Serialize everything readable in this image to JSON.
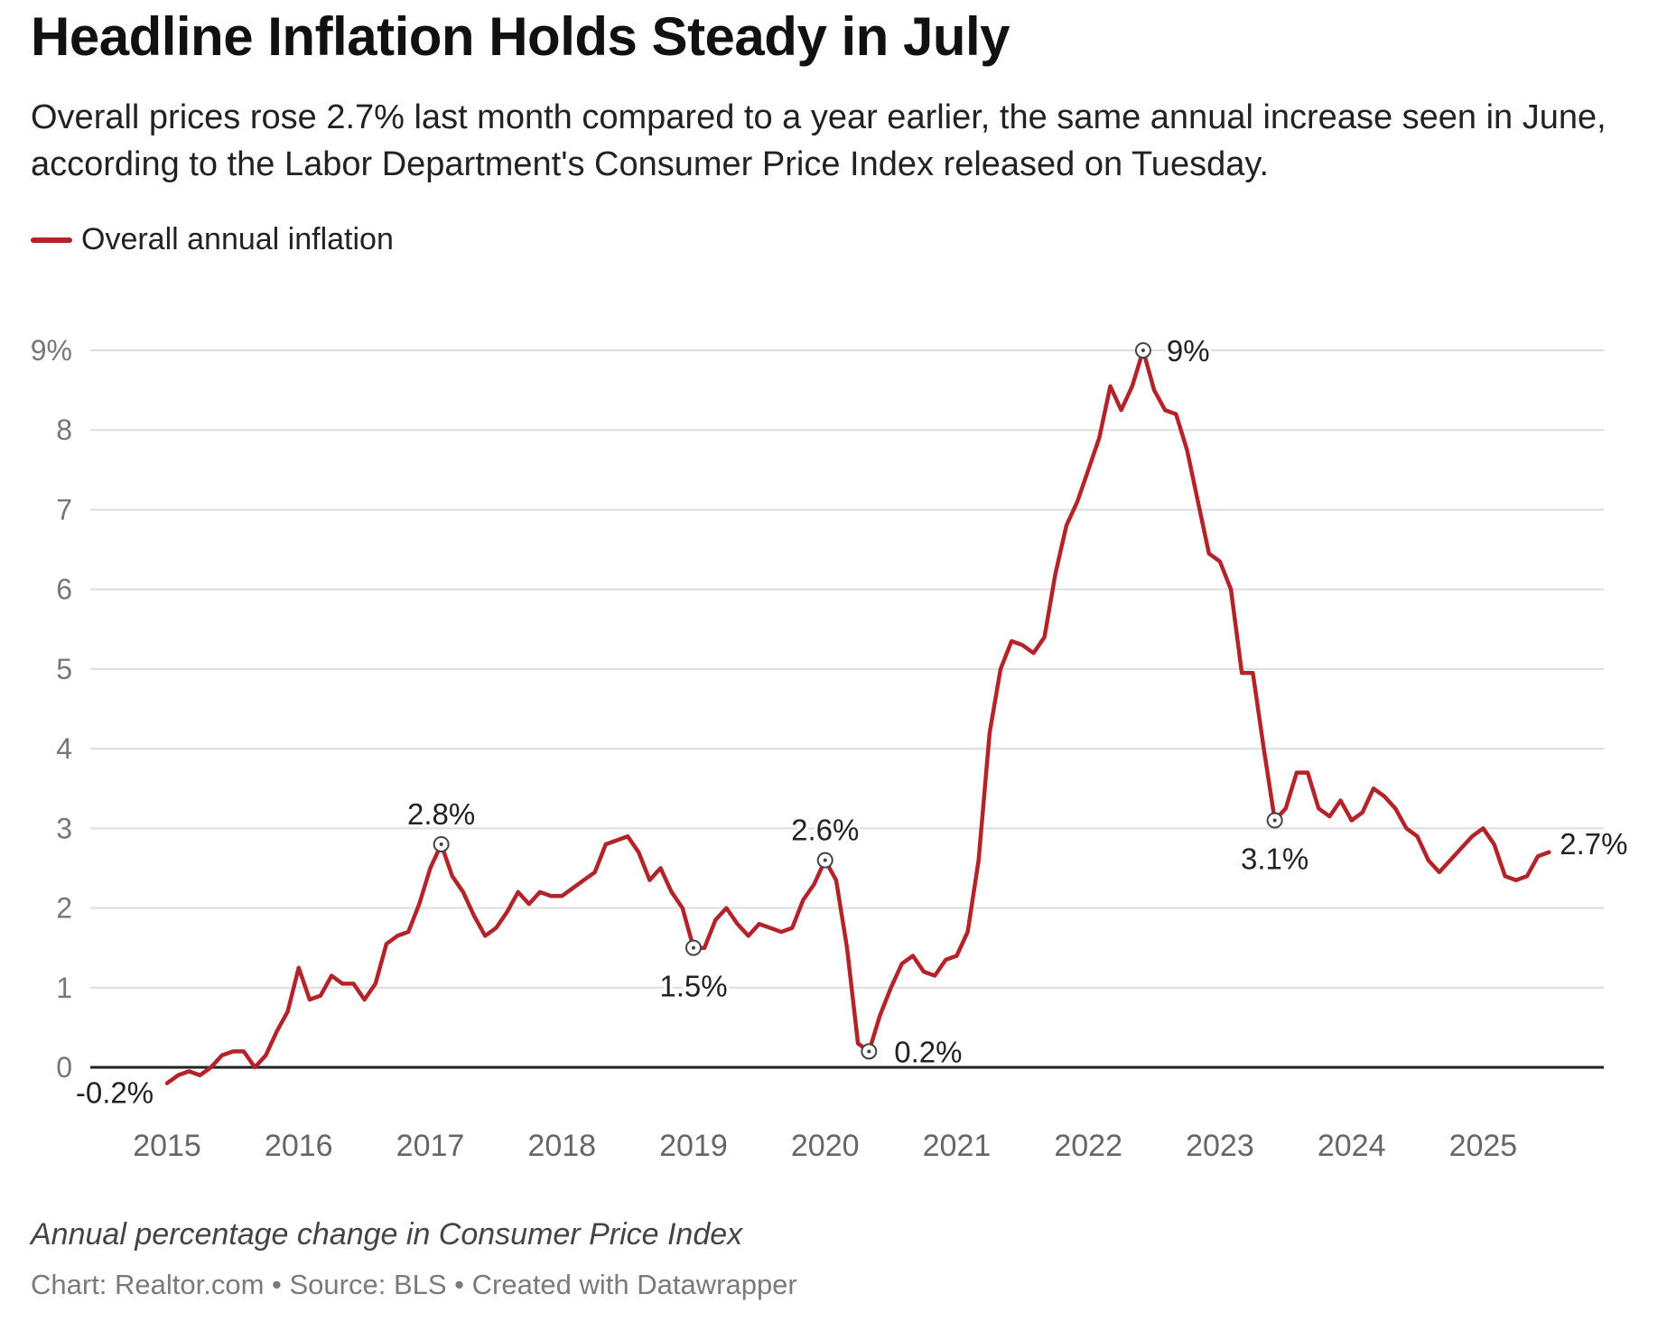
{
  "title": "Headline Inflation Holds Steady in July",
  "subtitle": "Overall prices rose 2.7% last month compared to a year earlier, the same annual increase seen in June, according to the Labor Department's Consumer Price Index released on Tuesday.",
  "notes": "Annual percentage change in Consumer Price Index",
  "footer": "Chart: Realtor.com • Source: BLS • Created with Datawrapper",
  "colors": {
    "line": "#b3232a",
    "grid": "#dddddd",
    "axis": "#222222",
    "tick": "#777777",
    "label": "#222222"
  },
  "chart_data": {
    "type": "line",
    "title": "Headline Inflation Holds Steady in July",
    "ylabel": "",
    "xlabel": "",
    "ylim": [
      -0.2,
      9
    ],
    "xlim": [
      "2014-06-01",
      "2025-12-31"
    ],
    "y_ticks": [
      {
        "value": 9,
        "label": "9%"
      },
      {
        "value": 8,
        "label": "8"
      },
      {
        "value": 7,
        "label": "7"
      },
      {
        "value": 6,
        "label": "6"
      },
      {
        "value": 5,
        "label": "5"
      },
      {
        "value": 4,
        "label": "4"
      },
      {
        "value": 3,
        "label": "3"
      },
      {
        "value": 2,
        "label": "2"
      },
      {
        "value": 1,
        "label": "1"
      },
      {
        "value": 0,
        "label": "0"
      }
    ],
    "x_ticks": [
      {
        "value": "2015-01",
        "label": "2015"
      },
      {
        "value": "2016-01",
        "label": "2016"
      },
      {
        "value": "2017-01",
        "label": "2017"
      },
      {
        "value": "2018-01",
        "label": "2018"
      },
      {
        "value": "2019-01",
        "label": "2019"
      },
      {
        "value": "2020-01",
        "label": "2020"
      },
      {
        "value": "2021-01",
        "label": "2021"
      },
      {
        "value": "2022-01",
        "label": "2022"
      },
      {
        "value": "2023-01",
        "label": "2023"
      },
      {
        "value": "2024-01",
        "label": "2024"
      },
      {
        "value": "2025-01",
        "label": "2025"
      }
    ],
    "grid": true,
    "legend": "top-left",
    "series": [
      {
        "name": "Overall annual inflation",
        "color": "#b3232a",
        "x": [
          "2015-01",
          "2015-02",
          "2015-03",
          "2015-04",
          "2015-05",
          "2015-06",
          "2015-07",
          "2015-08",
          "2015-09",
          "2015-10",
          "2015-11",
          "2015-12",
          "2016-01",
          "2016-02",
          "2016-03",
          "2016-04",
          "2016-05",
          "2016-06",
          "2016-07",
          "2016-08",
          "2016-09",
          "2016-10",
          "2016-11",
          "2016-12",
          "2017-01",
          "2017-02",
          "2017-03",
          "2017-04",
          "2017-05",
          "2017-06",
          "2017-07",
          "2017-08",
          "2017-09",
          "2017-10",
          "2017-11",
          "2017-12",
          "2018-01",
          "2018-02",
          "2018-03",
          "2018-04",
          "2018-05",
          "2018-06",
          "2018-07",
          "2018-08",
          "2018-09",
          "2018-10",
          "2018-11",
          "2018-12",
          "2019-01",
          "2019-02",
          "2019-03",
          "2019-04",
          "2019-05",
          "2019-06",
          "2019-07",
          "2019-08",
          "2019-09",
          "2019-10",
          "2019-11",
          "2019-12",
          "2020-01",
          "2020-02",
          "2020-03",
          "2020-04",
          "2020-05",
          "2020-06",
          "2020-07",
          "2020-08",
          "2020-09",
          "2020-10",
          "2020-11",
          "2020-12",
          "2021-01",
          "2021-02",
          "2021-03",
          "2021-04",
          "2021-05",
          "2021-06",
          "2021-07",
          "2021-08",
          "2021-09",
          "2021-10",
          "2021-11",
          "2021-12",
          "2022-01",
          "2022-02",
          "2022-03",
          "2022-04",
          "2022-05",
          "2022-06",
          "2022-07",
          "2022-08",
          "2022-09",
          "2022-10",
          "2022-11",
          "2022-12",
          "2023-01",
          "2023-02",
          "2023-03",
          "2023-04",
          "2023-05",
          "2023-06",
          "2023-07",
          "2023-08",
          "2023-09",
          "2023-10",
          "2023-11",
          "2023-12",
          "2024-01",
          "2024-02",
          "2024-03",
          "2024-04",
          "2024-05",
          "2024-06",
          "2024-07",
          "2024-08",
          "2024-09",
          "2024-10",
          "2024-11",
          "2024-12",
          "2025-01",
          "2025-02",
          "2025-03",
          "2025-04",
          "2025-05",
          "2025-06",
          "2025-07"
        ],
        "values": [
          -0.2,
          -0.1,
          -0.05,
          -0.1,
          0.0,
          0.15,
          0.2,
          0.2,
          0.0,
          0.15,
          0.45,
          0.7,
          1.25,
          0.85,
          0.9,
          1.15,
          1.05,
          1.05,
          0.85,
          1.05,
          1.55,
          1.65,
          1.7,
          2.05,
          2.5,
          2.8,
          2.4,
          2.2,
          1.9,
          1.65,
          1.75,
          1.95,
          2.2,
          2.05,
          2.2,
          2.15,
          2.15,
          2.25,
          2.35,
          2.45,
          2.8,
          2.85,
          2.9,
          2.7,
          2.35,
          2.5,
          2.2,
          2.0,
          1.5,
          1.5,
          1.85,
          2.0,
          1.8,
          1.65,
          1.8,
          1.75,
          1.7,
          1.75,
          2.1,
          2.3,
          2.6,
          2.35,
          1.5,
          0.3,
          0.2,
          0.65,
          1.0,
          1.3,
          1.4,
          1.2,
          1.15,
          1.35,
          1.4,
          1.7,
          2.6,
          4.2,
          5.0,
          5.35,
          5.3,
          5.2,
          5.4,
          6.2,
          6.8,
          7.1,
          7.5,
          7.9,
          8.55,
          8.25,
          8.55,
          9.0,
          8.5,
          8.25,
          8.2,
          7.75,
          7.1,
          6.45,
          6.35,
          6.0,
          4.95,
          4.95,
          4.0,
          3.1,
          3.25,
          3.7,
          3.7,
          3.25,
          3.15,
          3.35,
          3.1,
          3.2,
          3.5,
          3.4,
          3.25,
          3.0,
          2.9,
          2.6,
          2.45,
          2.6,
          2.75,
          2.9,
          3.0,
          2.8,
          2.4,
          2.35,
          2.4,
          2.65,
          2.7
        ]
      }
    ],
    "annotations": [
      {
        "x": "2015-01",
        "value": -0.2,
        "label": "-0.2%",
        "marker": false
      },
      {
        "x": "2017-02",
        "value": 2.8,
        "label": "2.8%",
        "marker": true
      },
      {
        "x": "2019-01",
        "value": 1.5,
        "label": "1.5%",
        "marker": true
      },
      {
        "x": "2020-01",
        "value": 2.6,
        "label": "2.6%",
        "marker": true
      },
      {
        "x": "2020-05",
        "value": 0.2,
        "label": "0.2%",
        "marker": true
      },
      {
        "x": "2022-06",
        "value": 9.0,
        "label": "9%",
        "marker": true
      },
      {
        "x": "2023-06",
        "value": 3.1,
        "label": "3.1%",
        "marker": true
      },
      {
        "x": "2025-07",
        "value": 2.7,
        "label": "2.7%",
        "marker": false
      }
    ]
  }
}
